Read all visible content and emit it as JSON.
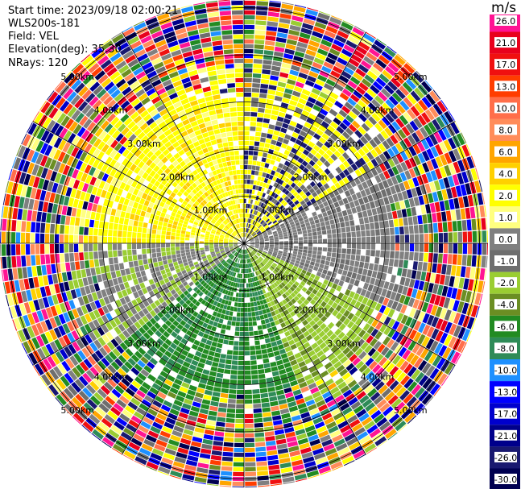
{
  "header": {
    "start_time": "Start time: 2023/09/18 02:00:21",
    "instrument": "WLS200s-181",
    "field": "Field: VEL",
    "elevation": "Elevation(deg): 35.30",
    "nrays": "NRays: 120"
  },
  "colorbar": {
    "unit": "m/s",
    "ticks": [
      "26.0",
      "21.0",
      "17.0",
      "13.0",
      "10.0",
      "8.0",
      "6.0",
      "4.0",
      "2.0",
      "1.0",
      "0.0",
      "-1.0",
      "-2.0",
      "-4.0",
      "-6.0",
      "-8.0",
      "-10.0",
      "-13.0",
      "-17.0",
      "-21.0",
      "-26.0",
      "-30.0"
    ],
    "colors": [
      "#ff1493",
      "#e8001c",
      "#f01010",
      "#ff3d00",
      "#ff6e4a",
      "#ff8c5a",
      "#ffa500",
      "#ffd000",
      "#ffff00",
      "#ffff80",
      "#808080",
      "#6e6e6e",
      "#9acd32",
      "#6b8e23",
      "#228b22",
      "#2e8b57",
      "#1e90ff",
      "#0000ff",
      "#0000cd",
      "#00008b",
      "#191970",
      "#000050"
    ]
  },
  "chart_data": {
    "type": "heatmap",
    "projection": "polar-ppi",
    "field": "VEL",
    "units": "m/s",
    "nrays": 120,
    "range_rings_km": [
      1.0,
      2.0,
      3.0,
      4.0,
      5.0
    ],
    "ring_labels": [
      "1.00km",
      "2.00km",
      "3.00km",
      "4.00km",
      "5.00km"
    ],
    "colorbar_ticks": [
      26,
      21,
      17,
      13,
      10,
      8,
      6,
      4,
      2,
      1,
      0,
      -1,
      -2,
      -4,
      -6,
      -8,
      -10,
      -13,
      -17,
      -21,
      -26,
      -30
    ]
  }
}
